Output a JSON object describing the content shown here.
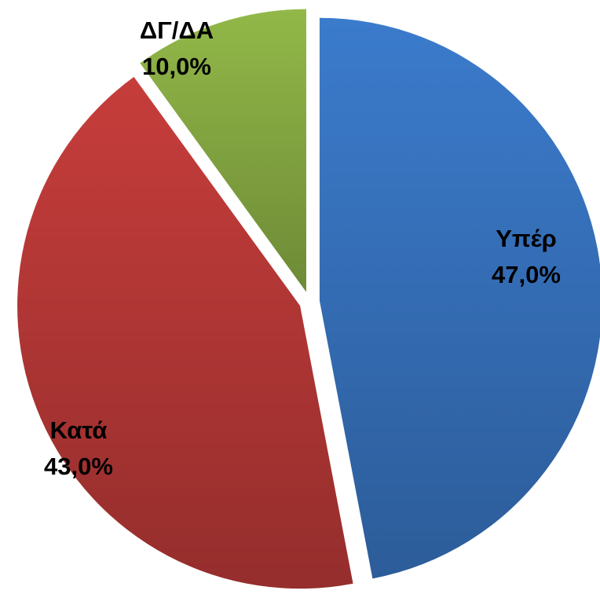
{
  "chart_data": {
    "type": "pie",
    "categories": [
      "Υπέρ",
      "Κατά",
      "ΔΓ/ΔΑ"
    ],
    "values": [
      47,
      43,
      10
    ],
    "value_labels": [
      "47,0%",
      "43,0%",
      "10,0%"
    ],
    "colors": [
      "#3b7bcc",
      "#c63d3b",
      "#92b848"
    ],
    "exploded": true
  }
}
